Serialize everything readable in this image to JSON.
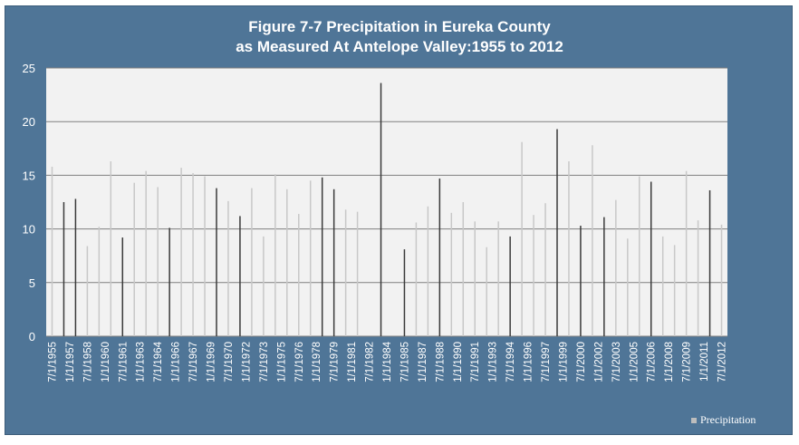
{
  "chart_data": {
    "type": "bar",
    "title_line1": "Figure 7-7 Precipitation in Eureka County",
    "title_line2": "as Measured At Antelope Valley:1955 to 2012",
    "xlabel": "",
    "ylabel": "",
    "ylim": [
      0,
      25
    ],
    "yticks": [
      0,
      5,
      10,
      15,
      20,
      25
    ],
    "grid": true,
    "legend_position": "bottom-right",
    "series_name": "Precipitation",
    "colors": {
      "frame": "#4f7597",
      "plot_bg": "#f2f2f2",
      "grid": "#7f7f7f",
      "bar_dark": "#3a3a3a",
      "bar_light": "#c8c8c8",
      "text": "#ffffff"
    },
    "categories": [
      "7/1/1955",
      "1/1/1957",
      "7/1/1958",
      "1/1/1960",
      "7/1/1961",
      "1/1/1963",
      "7/1/1964",
      "1/1/1966",
      "7/1/1967",
      "1/1/1969",
      "7/1/1970",
      "1/1/1972",
      "7/1/1973",
      "1/1/1975",
      "7/1/1976",
      "1/1/1978",
      "7/1/1979",
      "1/1/1981",
      "7/1/1982",
      "1/1/1984",
      "7/1/1985",
      "1/1/1987",
      "7/1/1988",
      "1/1/1990",
      "7/1/1991",
      "1/1/1993",
      "7/1/1994",
      "1/1/1996",
      "7/1/1997",
      "1/1/1999",
      "7/1/2000",
      "1/1/2002",
      "7/1/2003",
      "1/1/2005",
      "7/1/2006",
      "1/1/2008",
      "7/1/2009",
      "1/1/2011",
      "7/1/2012"
    ],
    "bars": [
      {
        "year": 1955.5,
        "value": 15.8,
        "shade": "light"
      },
      {
        "year": 1956.5,
        "value": 12.5,
        "shade": "dark"
      },
      {
        "year": 1957.5,
        "value": 12.8,
        "shade": "dark"
      },
      {
        "year": 1958.5,
        "value": 8.4,
        "shade": "light"
      },
      {
        "year": 1959.5,
        "value": 10.2,
        "shade": "light"
      },
      {
        "year": 1960.5,
        "value": 16.3,
        "shade": "light"
      },
      {
        "year": 1961.5,
        "value": 9.2,
        "shade": "dark"
      },
      {
        "year": 1962.5,
        "value": 14.3,
        "shade": "light"
      },
      {
        "year": 1963.5,
        "value": 15.4,
        "shade": "light"
      },
      {
        "year": 1964.5,
        "value": 13.9,
        "shade": "light"
      },
      {
        "year": 1965.5,
        "value": 10.1,
        "shade": "dark"
      },
      {
        "year": 1966.5,
        "value": 15.7,
        "shade": "light"
      },
      {
        "year": 1967.5,
        "value": 15.2,
        "shade": "light"
      },
      {
        "year": 1968.5,
        "value": 14.9,
        "shade": "light"
      },
      {
        "year": 1969.5,
        "value": 13.8,
        "shade": "dark"
      },
      {
        "year": 1970.5,
        "value": 12.6,
        "shade": "light"
      },
      {
        "year": 1971.5,
        "value": 11.2,
        "shade": "dark"
      },
      {
        "year": 1972.5,
        "value": 13.8,
        "shade": "light"
      },
      {
        "year": 1973.5,
        "value": 9.3,
        "shade": "light"
      },
      {
        "year": 1974.5,
        "value": 15.1,
        "shade": "light"
      },
      {
        "year": 1975.5,
        "value": 13.7,
        "shade": "light"
      },
      {
        "year": 1976.5,
        "value": 11.4,
        "shade": "light"
      },
      {
        "year": 1977.5,
        "value": 14.5,
        "shade": "light"
      },
      {
        "year": 1978.5,
        "value": 14.8,
        "shade": "dark"
      },
      {
        "year": 1979.5,
        "value": 13.7,
        "shade": "dark"
      },
      {
        "year": 1980.5,
        "value": 11.8,
        "shade": "light"
      },
      {
        "year": 1981.5,
        "value": 11.6,
        "shade": "light"
      },
      {
        "year": 1983.5,
        "value": 23.6,
        "shade": "dark"
      },
      {
        "year": 1985.5,
        "value": 8.1,
        "shade": "dark"
      },
      {
        "year": 1986.5,
        "value": 10.6,
        "shade": "light"
      },
      {
        "year": 1987.5,
        "value": 12.1,
        "shade": "light"
      },
      {
        "year": 1988.5,
        "value": 14.7,
        "shade": "dark"
      },
      {
        "year": 1989.5,
        "value": 11.5,
        "shade": "light"
      },
      {
        "year": 1990.5,
        "value": 12.5,
        "shade": "light"
      },
      {
        "year": 1991.5,
        "value": 10.7,
        "shade": "light"
      },
      {
        "year": 1992.5,
        "value": 8.3,
        "shade": "light"
      },
      {
        "year": 1993.5,
        "value": 10.7,
        "shade": "light"
      },
      {
        "year": 1994.5,
        "value": 9.3,
        "shade": "dark"
      },
      {
        "year": 1995.5,
        "value": 18.1,
        "shade": "light"
      },
      {
        "year": 1996.5,
        "value": 11.3,
        "shade": "light"
      },
      {
        "year": 1997.5,
        "value": 12.4,
        "shade": "light"
      },
      {
        "year": 1998.5,
        "value": 19.3,
        "shade": "dark"
      },
      {
        "year": 1999.5,
        "value": 16.3,
        "shade": "light"
      },
      {
        "year": 2000.5,
        "value": 10.3,
        "shade": "dark"
      },
      {
        "year": 2001.5,
        "value": 17.8,
        "shade": "light"
      },
      {
        "year": 2002.5,
        "value": 11.1,
        "shade": "dark"
      },
      {
        "year": 2003.5,
        "value": 12.7,
        "shade": "light"
      },
      {
        "year": 2004.5,
        "value": 9.1,
        "shade": "light"
      },
      {
        "year": 2005.5,
        "value": 14.9,
        "shade": "light"
      },
      {
        "year": 2006.5,
        "value": 14.4,
        "shade": "dark"
      },
      {
        "year": 2007.5,
        "value": 9.3,
        "shade": "light"
      },
      {
        "year": 2008.5,
        "value": 8.5,
        "shade": "light"
      },
      {
        "year": 2009.5,
        "value": 15.4,
        "shade": "light"
      },
      {
        "year": 2010.5,
        "value": 10.8,
        "shade": "light"
      },
      {
        "year": 2011.5,
        "value": 13.6,
        "shade": "dark"
      },
      {
        "year": 2012.5,
        "value": 10.4,
        "shade": "light"
      }
    ]
  }
}
